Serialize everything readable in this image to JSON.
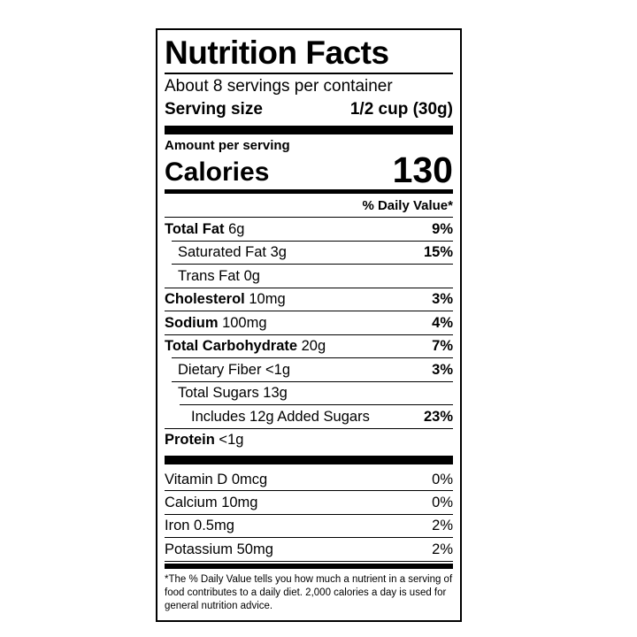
{
  "label": {
    "title": "Nutrition Facts",
    "servings_per_container": "About 8 servings per container",
    "serving_size": {
      "label": "Serving size",
      "value": "1/2 cup (30g)"
    },
    "amount_per_serving": "Amount per serving",
    "calories": {
      "label": "Calories",
      "value": "130"
    },
    "daily_value_header": "% Daily Value*",
    "nutrients": [
      {
        "name": "Total Fat",
        "amount": "6g",
        "dv": "9%",
        "bold": true,
        "indent": 0
      },
      {
        "name": "Saturated Fat",
        "amount": "3g",
        "dv": "15%",
        "bold": false,
        "indent": 1
      },
      {
        "name": "Trans Fat",
        "amount": "0g",
        "dv": "",
        "bold": false,
        "indent": 1
      },
      {
        "name": "Cholesterol",
        "amount": "10mg",
        "dv": "3%",
        "bold": true,
        "indent": 0
      },
      {
        "name": "Sodium",
        "amount": "100mg",
        "dv": "4%",
        "bold": true,
        "indent": 0
      },
      {
        "name": "Total Carbohydrate",
        "amount": "20g",
        "dv": "7%",
        "bold": true,
        "indent": 0
      },
      {
        "name": "Dietary Fiber",
        "amount": "<1g",
        "dv": "3%",
        "bold": false,
        "indent": 1
      },
      {
        "name": "Total Sugars",
        "amount": "13g",
        "dv": "",
        "bold": false,
        "indent": 1
      },
      {
        "name": "Includes 12g Added Sugars",
        "amount": "",
        "dv": "23%",
        "bold": false,
        "indent": 2
      },
      {
        "name": "Protein",
        "amount": "<1g",
        "dv": "",
        "bold": true,
        "indent": 0
      }
    ],
    "micronutrients": [
      {
        "name": "Vitamin D",
        "amount": "0mcg",
        "dv": "0%"
      },
      {
        "name": "Calcium",
        "amount": "10mg",
        "dv": "0%"
      },
      {
        "name": "Iron",
        "amount": "0.5mg",
        "dv": "2%"
      },
      {
        "name": "Potassium",
        "amount": "50mg",
        "dv": "2%"
      }
    ],
    "footnote": "*The % Daily Value tells you how much a nutrient in a serving of food contributes to a daily diet. 2,000 calories a day is used for general nutrition advice."
  }
}
